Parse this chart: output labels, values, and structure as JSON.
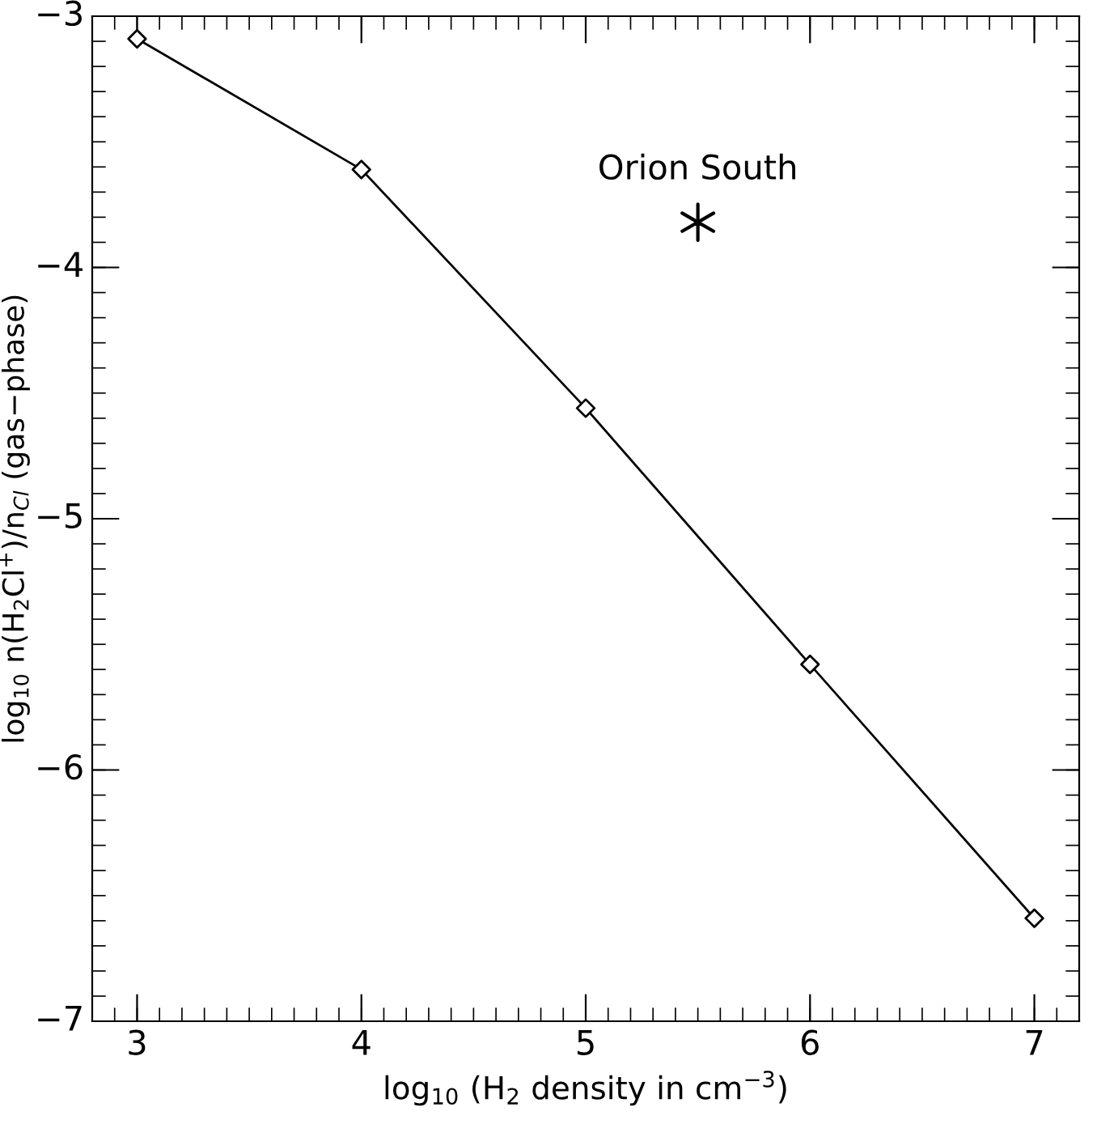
{
  "chart_data": {
    "type": "line",
    "xlabel": "log$_{10}$ (H$_{2}$ density in cm$^{−3}$)",
    "ylabel": "log$_{10}$ n(H$_{2}$Cl$^{+}$)/n$_{Cl}$ (gas−phase)",
    "xlim": [
      2.8,
      7.2
    ],
    "ylim": [
      -7,
      -3
    ],
    "xticks": [
      3,
      4,
      5,
      6,
      7
    ],
    "yticks": [
      -7,
      -6,
      -5,
      -4,
      -3
    ],
    "series": [
      {
        "color": "#000000",
        "marker": "diamond",
        "line_style": "solid",
        "x": [
          3,
          4,
          5,
          6,
          7
        ],
        "values": [
          -3.09,
          -3.61,
          -4.56,
          -5.58,
          -6.59
        ]
      },
      {
        "type": "scatter",
        "color": "#000000",
        "marker": "cross",
        "x": [
          5.5
        ],
        "values": [
          -3.82
        ]
      }
    ],
    "annotations": [
      {
        "text": "Orion South",
        "x": 5.5,
        "y": -3.82
      }
    ]
  }
}
